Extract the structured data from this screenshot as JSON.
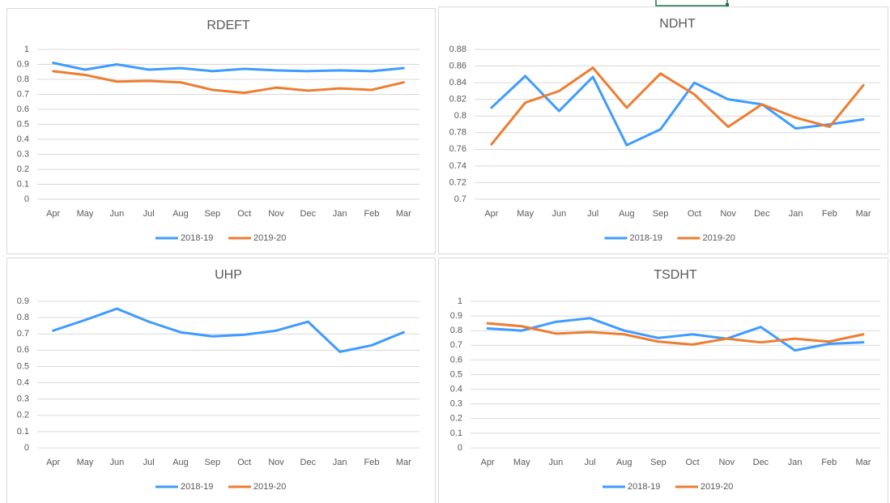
{
  "chart_data": [
    {
      "type": "line",
      "title": "RDEFT",
      "categories": [
        "Apr",
        "May",
        "Jun",
        "Jul",
        "Aug",
        "Sep",
        "Oct",
        "Nov",
        "Dec",
        "Jan",
        "Feb",
        "Mar"
      ],
      "series": [
        {
          "name": "2018-19",
          "color": "#3f9bff",
          "values": [
            0.91,
            0.865,
            0.9,
            0.865,
            0.875,
            0.855,
            0.87,
            0.86,
            0.855,
            0.86,
            0.855,
            0.875
          ]
        },
        {
          "name": "2019-20",
          "color": "#ed7d31",
          "values": [
            0.855,
            0.83,
            0.785,
            0.79,
            0.78,
            0.73,
            0.71,
            0.745,
            0.725,
            0.74,
            0.73,
            0.78
          ]
        }
      ],
      "ylim": [
        0,
        1
      ],
      "yticks": [
        0,
        0.1,
        0.2,
        0.3,
        0.4,
        0.5,
        0.6,
        0.7,
        0.8,
        0.9,
        1
      ],
      "grid": true,
      "legend": "bottom"
    },
    {
      "type": "line",
      "title": "NDHT",
      "categories": [
        "Apr",
        "May",
        "Jun",
        "Jul",
        "Aug",
        "Sep",
        "Oct",
        "Nov",
        "Dec",
        "Jan",
        "Feb",
        "Mar"
      ],
      "series": [
        {
          "name": "2018-19",
          "color": "#3f9bff",
          "values": [
            0.81,
            0.848,
            0.806,
            0.847,
            0.765,
            0.784,
            0.84,
            0.82,
            0.814,
            0.785,
            0.79,
            0.796
          ]
        },
        {
          "name": "2019-20",
          "color": "#ed7d31",
          "values": [
            0.766,
            0.816,
            0.83,
            0.858,
            0.81,
            0.851,
            0.826,
            0.787,
            0.814,
            0.798,
            0.787,
            0.837
          ]
        }
      ],
      "ylim": [
        0.7,
        0.88
      ],
      "yticks": [
        0.7,
        0.72,
        0.74,
        0.76,
        0.78,
        0.8,
        0.82,
        0.84,
        0.86,
        0.88
      ],
      "grid": true,
      "legend": "bottom"
    },
    {
      "type": "line",
      "title": "UHP",
      "categories": [
        "Apr",
        "May",
        "Jun",
        "Jul",
        "Aug",
        "Sep",
        "Oct",
        "Nov",
        "Dec",
        "Jan",
        "Feb",
        "Mar"
      ],
      "series": [
        {
          "name": "2018-19",
          "color": "#3f9bff",
          "values": [
            0.72,
            0.785,
            0.855,
            0.775,
            0.71,
            0.685,
            0.695,
            0.72,
            0.775,
            0.59,
            0.63,
            0.71
          ]
        },
        {
          "name": "2019-20",
          "color": "#ed7d31",
          "values": [
            null,
            null,
            null,
            null,
            null,
            null,
            null,
            null,
            null,
            null,
            null,
            null
          ]
        }
      ],
      "ylim": [
        0,
        0.9
      ],
      "yticks": [
        0,
        0.1,
        0.2,
        0.3,
        0.4,
        0.5,
        0.6,
        0.7,
        0.8,
        0.9
      ],
      "grid": true,
      "legend": "bottom"
    },
    {
      "type": "line",
      "title": "TSDHT",
      "categories": [
        "Apr",
        "May",
        "Jun",
        "Jul",
        "Aug",
        "Sep",
        "Oct",
        "Nov",
        "Dec",
        "Jan",
        "Feb",
        "Mar"
      ],
      "series": [
        {
          "name": "2018-19",
          "color": "#3f9bff",
          "values": [
            0.815,
            0.8,
            0.86,
            0.885,
            0.8,
            0.75,
            0.775,
            0.745,
            0.825,
            0.665,
            0.71,
            0.72
          ]
        },
        {
          "name": "2019-20",
          "color": "#ed7d31",
          "values": [
            0.85,
            0.83,
            0.78,
            0.79,
            0.775,
            0.725,
            0.705,
            0.745,
            0.72,
            0.745,
            0.725,
            0.775
          ]
        }
      ],
      "ylim": [
        0,
        1
      ],
      "yticks": [
        0,
        0.1,
        0.2,
        0.3,
        0.4,
        0.5,
        0.6,
        0.7,
        0.8,
        0.9,
        1
      ],
      "grid": true,
      "legend": "bottom"
    }
  ]
}
